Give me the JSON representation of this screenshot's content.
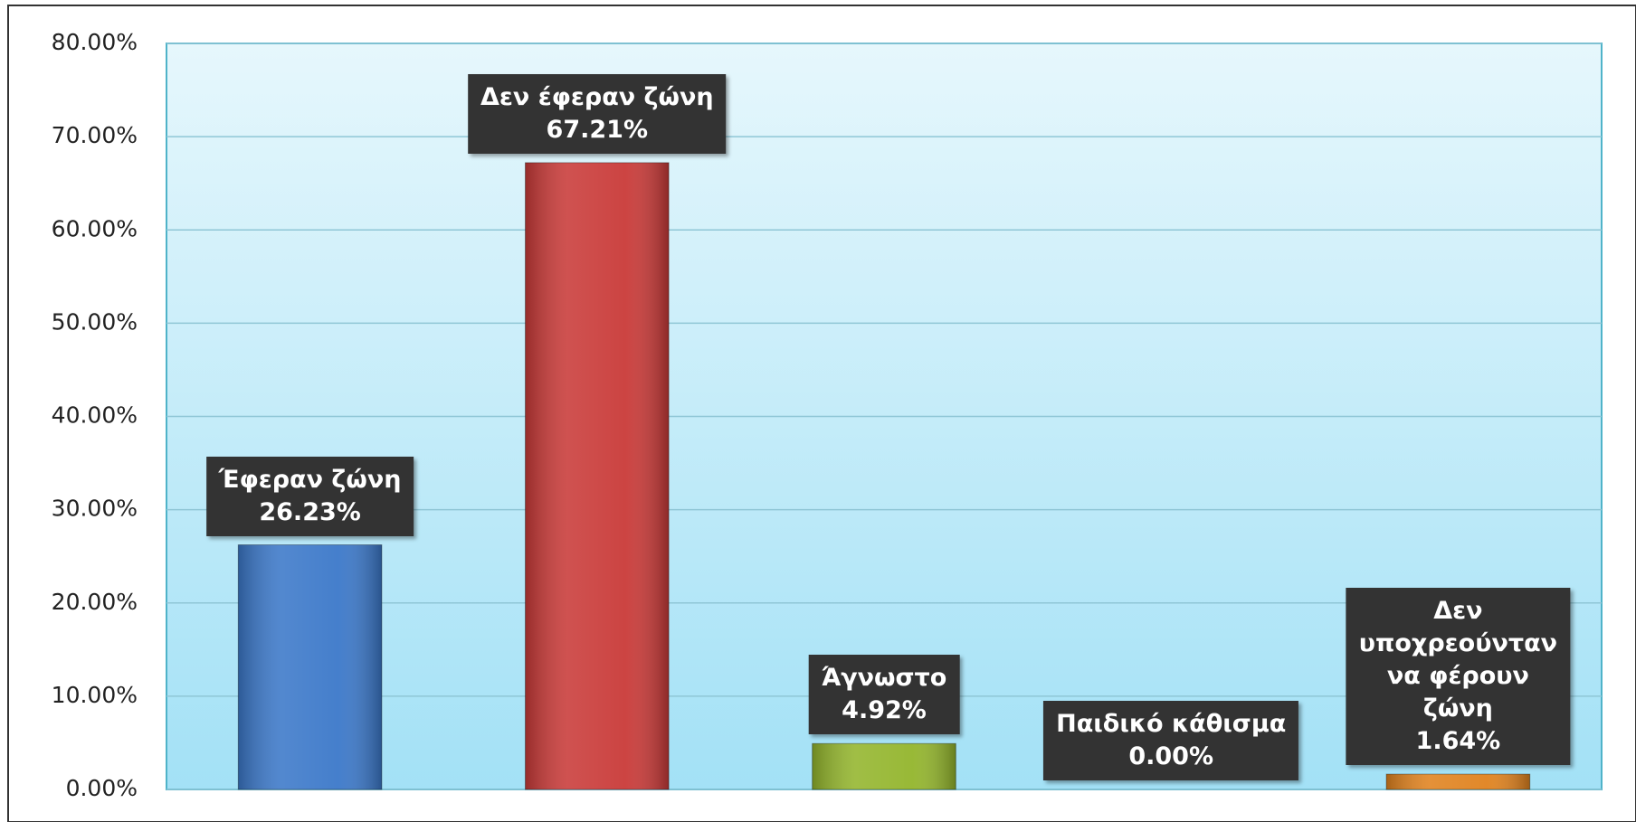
{
  "chart_data": {
    "type": "bar",
    "categories": [
      "Έφεραν ζώνη",
      "Δεν έφεραν ζώνη",
      "Άγνωστο",
      "Παιδικό κάθισμα",
      "Δεν υποχρεούνταν να φέρουν ζώνη"
    ],
    "values": [
      26.23,
      67.21,
      4.92,
      0,
      1.64
    ],
    "value_labels": [
      "26.23%",
      "67.21%",
      "4.92%",
      "0.00%",
      "1.64%"
    ],
    "colors": [
      "#3b78c9",
      "#c93a38",
      "#93b52c",
      "#7aa7d8",
      "#e0821e"
    ],
    "ylim": [
      0,
      80
    ],
    "yticks": [
      {
        "value": 0,
        "label": "0.00%"
      },
      {
        "value": 10,
        "label": "10.00%"
      },
      {
        "value": 20,
        "label": "20.00%"
      },
      {
        "value": 30,
        "label": "30.00%"
      },
      {
        "value": 40,
        "label": "40.00%"
      },
      {
        "value": 50,
        "label": "50.00%"
      },
      {
        "value": 60,
        "label": "60.00%"
      },
      {
        "value": 70,
        "label": "70.00%"
      },
      {
        "value": 80,
        "label": "80.00%"
      }
    ],
    "grid": true
  }
}
